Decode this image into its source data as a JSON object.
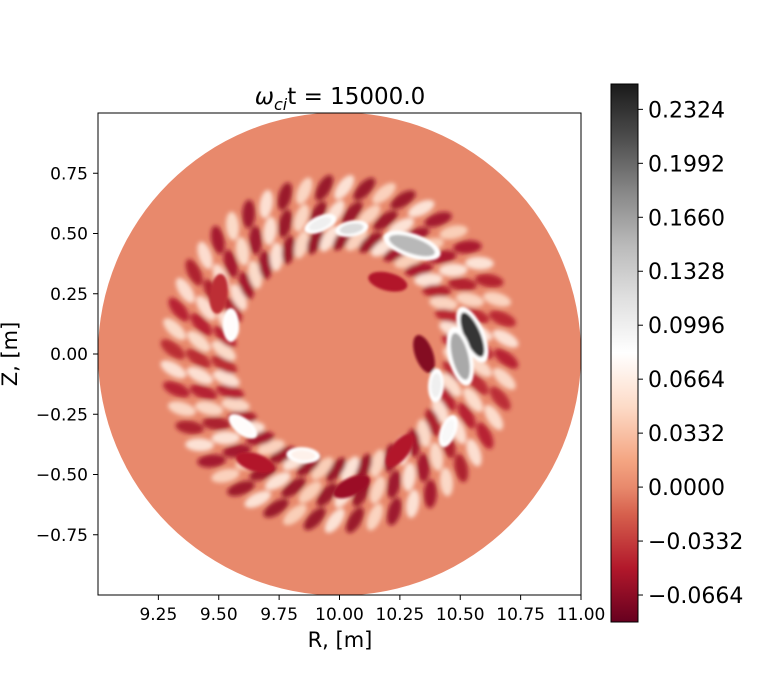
{
  "chart_data": {
    "type": "heatmap",
    "title": "ω_ci t = 15000.0",
    "title_parts": {
      "symbol": "ω",
      "subscript": "ci",
      "rest": "t = 15000.0"
    },
    "xlabel": "R, [m]",
    "ylabel": "Z, [m]",
    "xlim": [
      9.0,
      11.0
    ],
    "ylim": [
      -1.0,
      1.0
    ],
    "x_ticks": [
      "9.25",
      "9.50",
      "9.75",
      "10.00",
      "10.25",
      "10.50",
      "10.75",
      "11.00"
    ],
    "x_tick_values": [
      9.25,
      9.5,
      9.75,
      10.0,
      10.25,
      10.5,
      10.75,
      11.0
    ],
    "y_ticks": [
      "0.75",
      "0.50",
      "0.25",
      "0.00",
      "−0.25",
      "−0.50",
      "−0.75"
    ],
    "y_tick_values": [
      0.75,
      0.5,
      0.25,
      0.0,
      -0.25,
      -0.5,
      -0.75
    ],
    "domain": {
      "shape": "circle",
      "center_R": 10.0,
      "center_Z": 0.0,
      "radius": 1.0
    },
    "colorbar": {
      "colormap": "RdGy_r",
      "range": [
        -0.083,
        0.248
      ],
      "ticks": [
        "0.2324",
        "0.1992",
        "0.1660",
        "0.1328",
        "0.0996",
        "0.0664",
        "0.0332",
        "0.0000",
        "−0.0332",
        "−0.0664"
      ],
      "tick_values": [
        0.2324,
        0.1992,
        0.166,
        0.1328,
        0.0996,
        0.0664,
        0.0332,
        0.0,
        -0.0332,
        -0.0664
      ]
    },
    "background_value": 0.0,
    "ring_structure": {
      "inner_radius": 0.42,
      "outer_radius": 0.75,
      "pattern": "turbulent eddies alternating negative/positive",
      "count_approx": 26
    },
    "positive_blobs": [
      {
        "R": 10.55,
        "Z": 0.08,
        "value": 0.23
      },
      {
        "R": 10.5,
        "Z": -0.01,
        "value": 0.16
      },
      {
        "R": 10.3,
        "Z": 0.45,
        "value": 0.15
      },
      {
        "R": 10.05,
        "Z": 0.52,
        "value": 0.12
      },
      {
        "R": 9.92,
        "Z": 0.54,
        "value": 0.1
      },
      {
        "R": 10.4,
        "Z": -0.13,
        "value": 0.1
      },
      {
        "R": 10.45,
        "Z": -0.32,
        "value": 0.09
      },
      {
        "R": 9.55,
        "Z": 0.12,
        "value": 0.08
      },
      {
        "R": 9.6,
        "Z": -0.3,
        "value": 0.08
      },
      {
        "R": 9.85,
        "Z": -0.42,
        "value": 0.07
      }
    ],
    "negative_blobs": [
      {
        "R": 10.35,
        "Z": 0.0,
        "value": -0.07
      },
      {
        "R": 10.2,
        "Z": 0.3,
        "value": -0.05
      },
      {
        "R": 10.25,
        "Z": -0.4,
        "value": -0.05
      },
      {
        "R": 10.05,
        "Z": -0.55,
        "value": -0.06
      },
      {
        "R": 9.65,
        "Z": -0.45,
        "value": -0.05
      },
      {
        "R": 9.5,
        "Z": 0.25,
        "value": -0.04
      }
    ]
  }
}
